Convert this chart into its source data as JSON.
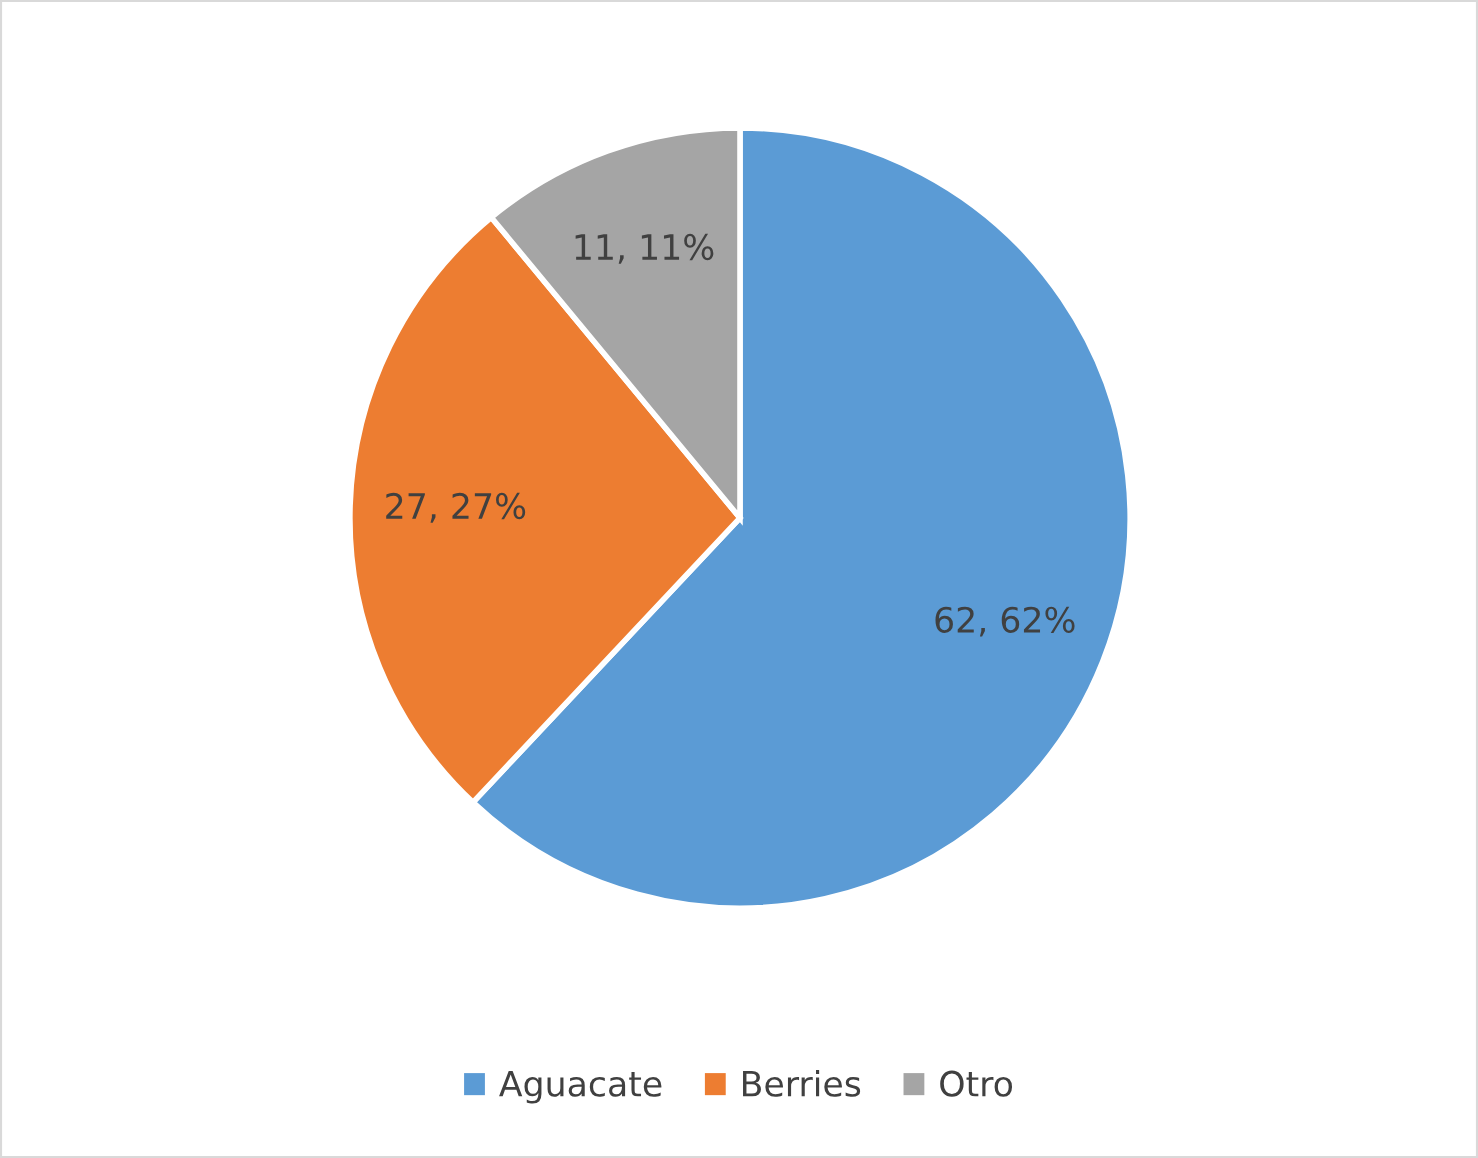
{
  "chart_data": {
    "type": "pie",
    "categories": [
      "Aguacate",
      "Berries",
      "Otro"
    ],
    "values": [
      62,
      27,
      11
    ],
    "colors": [
      "#5b9bd5",
      "#ed7d31",
      "#a5a5a5"
    ],
    "value_labels": [
      "62, 62%",
      "27, 27%",
      "11, 11%"
    ],
    "legend": "bottom"
  }
}
